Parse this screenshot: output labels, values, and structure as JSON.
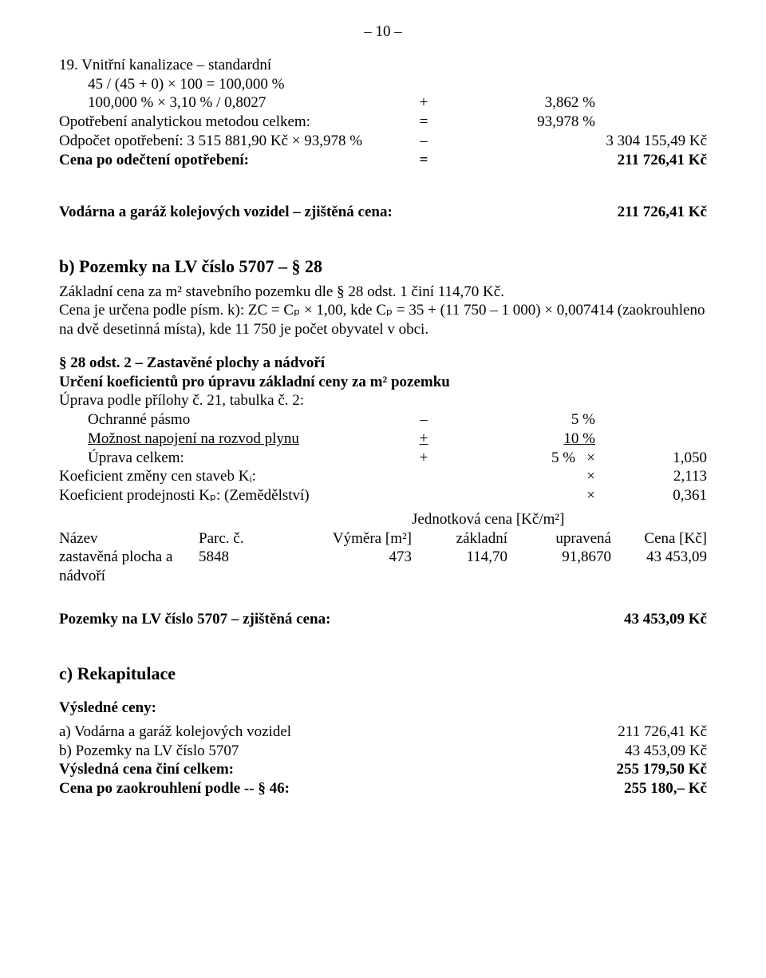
{
  "pageNumber": "– 10 –",
  "item19": {
    "title": "19. Vnitřní kanalizace – standardní",
    "line1": "45 / (45 + 0) × 100 = 100,000 %",
    "line2_left": "100,000 % × 3,10 % / 0,8027",
    "line2_op": "+",
    "line2_right": "3,862 %",
    "opotr_left": "Opotřebení analytickou metodou celkem:",
    "opotr_op": "=",
    "opotr_right": "93,978 %",
    "odp_left": "Odpočet opotřebení: 3 515 881,90 Kč × 93,978 %",
    "odp_op": "–",
    "odp_right": "3 304 155,49 Kč",
    "cenapo_left": "Cena po odečtení opotřebení:",
    "cenapo_op": "=",
    "cenapo_right": "211 726,41 Kč"
  },
  "zjistena": {
    "label": "Vodárna a garáž kolejových vozidel – zjištěná cena:",
    "value": "211 726,41 Kč"
  },
  "sectionB": {
    "heading": "b)  Pozemky na LV číslo 5707  – § 28",
    "p1": "Základní cena za m² stavebního pozemku dle § 28 odst. 1 činí 114,70 Kč.",
    "p2": "Cena je určena podle písm. k): ZC = Cₚ × 1,00, kde Cₚ = 35 + (11 750 – 1 000) × 0,007414 (zaokrouhleno na dvě desetinná místa), kde 11 750 je počet obyvatel v obci.",
    "h28": "§ 28 odst. 2 – Zastavěné plochy a nádvoří",
    "urceni": "Určení koeficientů pro úpravu základní ceny za m² pozemku",
    "uprava_label": "Úprava podle přílohy č. 21, tabulka č. 2:",
    "ochr_label": "Ochranné pásmo",
    "ochr_op": "–",
    "ochr_val": "5 %",
    "plyn_label": "Možnost napojení na rozvod plynu",
    "plyn_op": "+",
    "plyn_val": "10 %",
    "celkem_label": "Úprava celkem:",
    "celkem_op": "+",
    "celkem_val": "5 %",
    "celkem_mult": "×",
    "celkem_k": "1,050",
    "ki_label": "Koeficient změny cen staveb Kᵢ:",
    "ki_mult": "×",
    "ki": "2,113",
    "kp_label": "Koeficient prodejnosti Kₚ: (Zemědělství)",
    "kp_mult": "×",
    "kp": "0,361",
    "tblHeader": {
      "jedn": "Jednotková cena [Kč/m²]",
      "nazev": "Název",
      "parc": "Parc. č.",
      "vymera": "Výměra [m²]",
      "zakladni": "základní",
      "upravena": "upravená",
      "cena": "Cena [Kč]"
    },
    "tblRow": {
      "nazev": "zastavěná plocha a nádvoří",
      "parc": "5848",
      "vymera": "473",
      "zakladni": "114,70",
      "upravena": "91,8670",
      "cena": "43 453,09"
    },
    "pozemky_zj_label": "Pozemky na LV číslo 5707 – zjištěná cena:",
    "pozemky_zj_val": "43 453,09 Kč"
  },
  "sectionC": {
    "heading": "c)  Rekapitulace",
    "vysl_label": "Výsledné ceny:",
    "rowA_label": "a)  Vodárna a garáž kolejových vozidel",
    "rowA_val": "211 726,41 Kč",
    "rowB_label": "b)  Pozemky na LV číslo 5707",
    "rowB_val": "43 453,09 Kč",
    "celkem_label": "Výsledná cena činí celkem:",
    "celkem_val": "255 179,50 Kč",
    "zaokr_label": "Cena po zaokrouhlení podle -- § 46:",
    "zaokr_val": "255 180,–  Kč"
  }
}
